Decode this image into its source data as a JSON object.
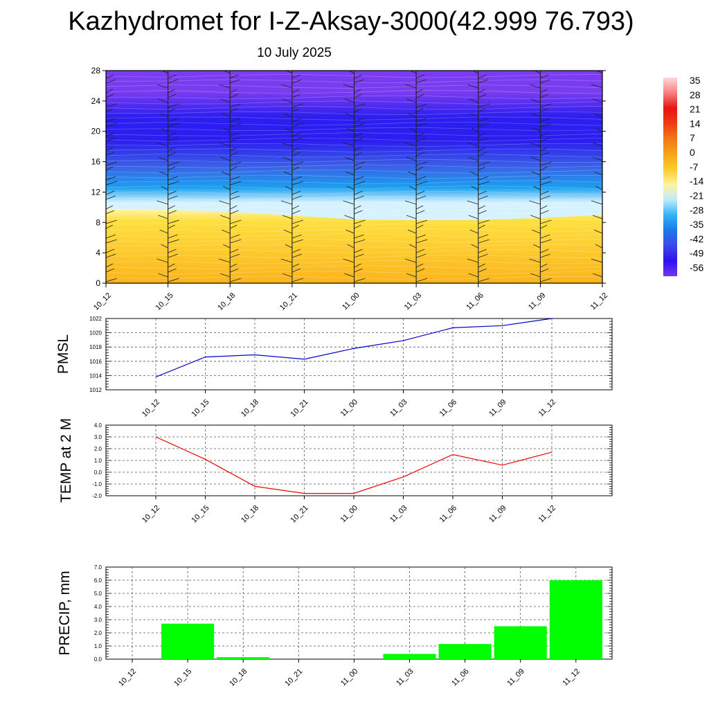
{
  "header": {
    "title": "Kazhydromet for I-Z-Aksay-3000(42.999 76.793)",
    "date": "10 July 2025"
  },
  "chart_data": [
    {
      "type": "heatmap",
      "x": [
        "10_12",
        "10_15",
        "10_18",
        "10_21",
        "11_00",
        "11_03",
        "11_06",
        "11_09",
        "11_12"
      ],
      "ylim": [
        0,
        28
      ],
      "yticks": [
        0,
        4,
        8,
        12,
        16,
        20,
        24,
        28
      ],
      "freezing_level": [
        9.8,
        9.7,
        9.4,
        8.9,
        8.4,
        8.3,
        8.3,
        8.6,
        9.0
      ],
      "colorbar": {
        "labels": [
          "35",
          "28",
          "21",
          "14",
          "7",
          "0",
          "-7",
          "-14",
          "-21",
          "-28",
          "-35",
          "-42",
          "-49",
          "-56"
        ],
        "colors": [
          "#ffd8d8",
          "#f78080",
          "#e81414",
          "#ee3c14",
          "#f07818",
          "#f8a418",
          "#fccc2c",
          "#fff4a0",
          "#bfeaff",
          "#32b4f4",
          "#1c76ea",
          "#3c48ea",
          "#3010ee",
          "#7438ee"
        ]
      },
      "colors": {
        "upper": "#7a3cf0",
        "mid_upper": "#2a1ef0",
        "mid": "#3a60e6",
        "lower_cold": "#1aa0f0",
        "near_freeze": "#d6f2ff",
        "warm_top": "#fff4b0",
        "warm": "#ffe040",
        "warm_bottom": "#fbb41c"
      }
    },
    {
      "type": "line",
      "ylabel": "PMSL",
      "x": [
        "10_12",
        "10_15",
        "10_18",
        "10_21",
        "11_00",
        "11_03",
        "11_06",
        "11_09",
        "11_12"
      ],
      "values": [
        1013.8,
        1016.6,
        1016.9,
        1016.3,
        1017.8,
        1018.9,
        1020.7,
        1021.0,
        1022.0
      ],
      "ylim": [
        1012,
        1022
      ],
      "yticks": [
        "1012",
        "1014",
        "1016",
        "1018",
        "1020",
        "1022"
      ],
      "color": "#0000cc",
      "grid": true
    },
    {
      "type": "line",
      "ylabel": "TEMP at 2 M",
      "x": [
        "10_12",
        "10_15",
        "10_18",
        "10_21",
        "11_00",
        "11_03",
        "11_06",
        "11_09",
        "11_12"
      ],
      "values": [
        3.0,
        1.1,
        -1.2,
        -1.8,
        -1.8,
        -0.4,
        1.5,
        0.6,
        1.7
      ],
      "ylim": [
        -2.0,
        4.0
      ],
      "yticks": [
        "-2.0",
        "-1.0",
        "0.0",
        "1.0",
        "2.0",
        "3.0",
        "4.0"
      ],
      "color": "#ee0000",
      "grid": true
    },
    {
      "type": "bar",
      "ylabel": "PRECIP, mm",
      "categories": [
        "10_12",
        "10_15",
        "10_18",
        "10_21",
        "11_00",
        "11_03",
        "11_06",
        "11_09",
        "11_12"
      ],
      "values": [
        0.0,
        2.7,
        0.15,
        0.0,
        0.0,
        0.4,
        1.15,
        2.5,
        6.0
      ],
      "ylim": [
        0,
        7.0
      ],
      "yticks": [
        "0.0",
        "1.0",
        "2.0",
        "3.0",
        "4.0",
        "5.0",
        "6.0",
        "7.0"
      ],
      "color": "#00ff00",
      "grid": true
    }
  ]
}
